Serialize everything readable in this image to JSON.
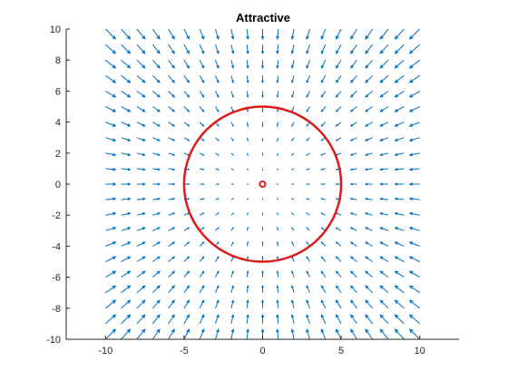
{
  "chart_data": {
    "type": "quiver",
    "title": "Attractive",
    "xlabel": "",
    "ylabel": "",
    "xlim": [
      -12.5,
      12.5
    ],
    "ylim": [
      -10,
      10
    ],
    "xticks": [
      -10,
      -5,
      0,
      5,
      10
    ],
    "yticks": [
      -10,
      -8,
      -6,
      -4,
      -2,
      0,
      2,
      4,
      6,
      8,
      10
    ],
    "grid": false,
    "box": "left-bottom",
    "vector_field": {
      "description_free": true,
      "x_range": [
        -10,
        10
      ],
      "y_range": [
        -10,
        10
      ],
      "step": 1,
      "direction": "toward-origin",
      "color": "#0072BD"
    },
    "circle": {
      "center": [
        0,
        0
      ],
      "radius": 5,
      "color": "#DD1C1A"
    },
    "center_marker": {
      "x": 0,
      "y": 0,
      "color": "#DD1C1A"
    }
  }
}
